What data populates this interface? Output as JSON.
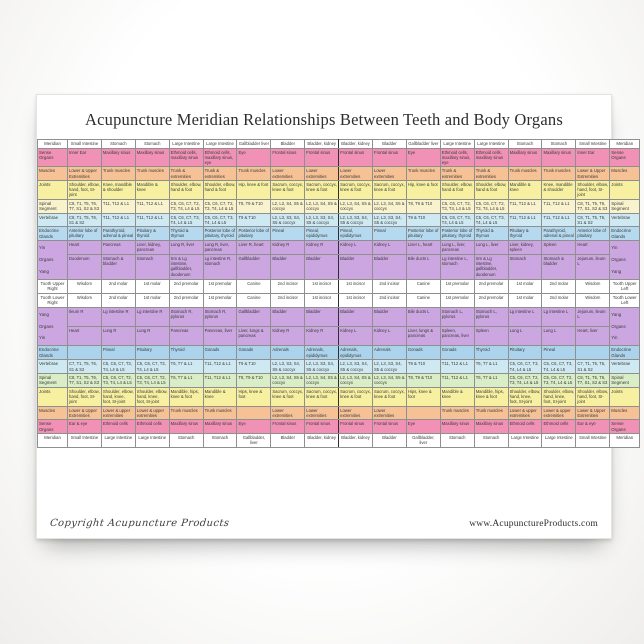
{
  "page": {
    "title": "Acupuncture Meridian Relationships Between Teeth and Body Organs",
    "footer_left": "Copyright Acupuncture Products",
    "footer_right": "www.AcupunctureProducts.com"
  },
  "colors": {
    "pink": "#f191b5",
    "peach": "#f6c295",
    "yellow": "#f6f0a0",
    "cream": "#f8f3cd",
    "cyan": "#cfe9f2",
    "blue": "#b5d9ee",
    "blue_lower": "#abd4ec",
    "purple": "#cba6e0",
    "green": "#d9edc6",
    "white": "#ffffff",
    "midline": "#2f2f2f"
  },
  "table": {
    "columns": 18,
    "rows": [
      {
        "name": "meridian-top",
        "bg": "#ffffff",
        "align": "center",
        "left": "Meridian",
        "right": "Meridian",
        "cells": [
          "Small Intestine",
          "Stomach",
          "Stomach",
          "Large Intestine",
          "Large Intestine",
          "Gallbladder liver",
          "Bladder",
          "Bladder, kidney",
          "Bladder, kidney",
          "Bladder",
          "Gallbladder liver",
          "Large Intestine",
          "Large Intestine",
          "Stomach",
          "Stomach",
          "Small Intestine"
        ]
      },
      {
        "name": "sense-organs-upper",
        "bg": "#f191b5",
        "left": "Sense Organs",
        "right": "Sense Organs",
        "cells": [
          "Inner Ear",
          "Maxillary sinus",
          "Maxillary sinus",
          "Ethmoid cells, maxillary sinus",
          "Ethmoid cells, maxillary sinus, eye",
          "Eye",
          "Frontal sinus",
          "Frontal sinus",
          "Frontal sinus",
          "Frontal sinus",
          "Eye",
          "Ethmoid cells, maxillary sinus, eye",
          "Ethmoid cells, maxillary sinus",
          "Maxillary sinus",
          "Maxillary sinus",
          "Inner Ear"
        ]
      },
      {
        "name": "muscles-upper",
        "bg": "#f6c295",
        "left": "Muscles",
        "right": "Muscles",
        "cells": [
          "Lower & Upper Extremities",
          "Trunk muscles",
          "Trunk muscles",
          "Trunk & extremities",
          "Trunk & extremities",
          "Trunk muscles",
          "Lower extremities",
          "Lower extremities",
          "Lower extremities",
          "Lower extremities",
          "Trunk muscles",
          "Trunk & extremities",
          "Trunk & extremities",
          "Trunk muscles",
          "Trunk muscles",
          "Lower & Upper Extremities"
        ]
      },
      {
        "name": "joints-upper",
        "bg": "#f6f0a0",
        "left": "Joints",
        "right": "Joints",
        "cells": [
          "Shoulder, elbow, hand, foot, SI-joint",
          "Knee, mandible & shoulder",
          "Mandible & knee",
          "Shoulder, elbow, hand & foot",
          "Shoulder, elbow, hand & foot",
          "Hip, knee & foot",
          "Sacrum, coccyx, knee & foot",
          "Sacrum, coccyx, knee & foot",
          "Sacrum, coccyx, knee & foot",
          "Sacrum, coccyx, knee & foot",
          "Hip, knee & foot",
          "Shoulder, elbow, hand & foot",
          "Shoulder, elbow, hand & foot",
          "Mandible & knee",
          "Knee, mandible & shoulder",
          "Shoulder, elbow, hand, foot, SI-joint"
        ]
      },
      {
        "name": "spinal-segment-upper",
        "bg": "#f8f3cd",
        "left": "Spinal Segment",
        "right": "Spinal Segment",
        "cells": [
          "C8, T1, T5, T6, T7, S1, S2 & S3",
          "T11, T12 & L1",
          "T11, T12 & L1",
          "C5, C6, C7, T2, T3, T4, L4 & L5",
          "C5, C6, C7, T2, T3, T4, L4 & L5",
          "T8, T9 & T10",
          "L2, L3, S4, S5 & coccyx",
          "L2, L3, S4, S5 & coccyx",
          "L2, L3, S4, S5 & coccyx",
          "L2, L3, S4, S5 & coccyx",
          "T8, T9 & T10",
          "C5, C6, C7, T2, T3, T4, L4 & L5",
          "C5, C6, C7, T2, T3, T4, L4 & L5",
          "T11, T12 & L1",
          "T11, T12 & L1",
          "C8, T1, T5, T6, T7, S1, S2 & S3"
        ]
      },
      {
        "name": "vertebrae-upper",
        "bg": "#cfe9f2",
        "left": "Vertebrae",
        "right": "Vertebrae",
        "cells": [
          "C8, T1, T5, T6, S1 & S2",
          "T11, T12 & L1",
          "T11, T12 & L1",
          "C5, C6, C7, T3, T4, L4 & L5",
          "C5, C6, C7, T3, T4, L4 & L5",
          "T9 & T10",
          "L2, L3, S3, S4, S5 & coccyx",
          "L2, L3, S3, S4, S5 & coccyx",
          "L2, L3, S3, S4, S5 & coccyx",
          "L2, L3, S3, S4, S5 & coccyx",
          "T9 & T10",
          "C5, C6, C7, T3, T4, L4 & L5",
          "C5, C6, C7, T3, T4, L4 & L5",
          "T11, T12 & L1",
          "T11, T12 & L1",
          "C8, T1, T5, T6, S1 & S2"
        ]
      },
      {
        "name": "endocrine-glands-upper",
        "bg": "#b5d9ee",
        "left": "Endocrine Glands",
        "right": "Endocrine Glands",
        "cells": [
          "Anterior lobe of pituitary",
          "Parathyroid, adrenal & pineal",
          "Pituitary & thyroid",
          "Thyroid & thymus",
          "Posterior lobe of pituitary, thyroid",
          "Posterior lobe of pituitary",
          "Pineal",
          "Pineal, epididymus",
          "Pineal, epididymus",
          "Pineal",
          "Posterior lobe of pituitary",
          "Posterior lobe of pituitary, thyroid",
          "Thyroid & thymus",
          "Pituitary & thyroid",
          "Parathyroid, adrenal & pineal",
          "Anterior lobe of pituitary"
        ]
      },
      {
        "name": "yin-organs-upper",
        "bg": "#cba6e0",
        "left": "Yin\nOrgans\nYang",
        "right": "Yin\nOrgans\nYang",
        "span": 2,
        "cells": [
          "Heart",
          "Pancreas",
          "Liver, kidney, pancreas",
          "Lung R, liver",
          "Lung R, liver, pancreas",
          "Liver R, heart",
          "Kidney R",
          "Kidney R",
          "Kidney L",
          "Kidney L",
          "Liver L, heart",
          "Lung L, liver, pancreas",
          "Lung L, liver",
          "Liver, kidney, spleen",
          "Spleen",
          "Heart"
        ]
      },
      {
        "name": "yang-organs-upper",
        "bg": "#cba6e0",
        "left": null,
        "right": null,
        "cells": [
          "Duodenum",
          "Stomach & bladder",
          "Stomach",
          "Sm & Lg intestine, gallbladder, duodenum",
          "Lg intestine R, stomach",
          "Gallbladder",
          "Bladder",
          "Bladder",
          "Bladder",
          "Bladder",
          "Bile ducts L",
          "Lg intestine L, stomach",
          "Sm & Lg intestine, gallbladder, duodenum",
          "Stomach",
          "Stomach & bladder",
          "Jejunum, ileum L"
        ]
      },
      {
        "name": "tooth-upper",
        "bg": "#ffffff",
        "align": "center",
        "left": "Tooth Upper Right",
        "right": "Tooth Upper Left",
        "cells": [
          "Wisdom",
          "2nd molar",
          "1st molar",
          "2nd premolar",
          "1st premolar",
          "Canine",
          "2nd incisor",
          "1st incisor",
          "1st incisor",
          "2nd incisor",
          "Canine",
          "1st premolar",
          "2nd premolar",
          "1st molar",
          "2nd molar",
          "Wisdom"
        ]
      },
      {
        "name": "tooth-lower",
        "bg": "#ffffff",
        "align": "center",
        "left": "Tooth Lower Right",
        "right": "Tooth Lower Left",
        "cells": [
          "Wisdom",
          "2nd molar",
          "1st molar",
          "2nd premolar",
          "1st premolar",
          "Canine",
          "2nd incisor",
          "1st incisor",
          "1st incisor",
          "2nd incisor",
          "Canine",
          "1st premolar",
          "2nd premolar",
          "1st molar",
          "2nd molar",
          "Wisdom"
        ]
      },
      {
        "name": "yang-organs-lower",
        "bg": "#cba6e0",
        "left": "Yang\nOrgans\nYin",
        "right": "Yang\nOrgans\nYin",
        "span": 2,
        "cells": [
          "Ileum R",
          "Lg intestine R",
          "Lg intestine R",
          "Stomach R, pylorus",
          "Stomach R, pylorus",
          "Gallbladder",
          "Bladder",
          "Bladder",
          "Bladder",
          "Bladder",
          "Bile ducts L",
          "Stomach L, pylorus",
          "Stomach L, pylorus",
          "Lg intestine L",
          "Lg intestine L",
          "Jejunum, ileum L"
        ]
      },
      {
        "name": "yin-organs-lower",
        "bg": "#cba6e0",
        "left": null,
        "right": null,
        "cells": [
          "Heart",
          "Lung R",
          "Lung R",
          "Pancreas",
          "Pancreas, liver",
          "Liver, lungs & pancreas",
          "Kidney R",
          "Kidney R",
          "Kidney L",
          "Kidney L",
          "Liver, lungs & pancreas",
          "Spleen, pancreas, liver",
          "Spleen",
          "Lung L",
          "Lung L",
          "Heart, liver"
        ]
      },
      {
        "name": "endocrine-glands-lower",
        "bg": "#abd4ec",
        "left": "Endocrine Glands",
        "right": "Endocrine Glands",
        "cells": [
          "",
          "Pineal",
          "Pituitary",
          "Thyroid",
          "Gonads",
          "Gonads",
          "Adrenals",
          "Adrenals, epididymus",
          "Adrenals, epididymus",
          "Adrenals",
          "Gonads",
          "Gonads",
          "Thyroid",
          "Pituitary",
          "Pineal",
          ""
        ]
      },
      {
        "name": "vertebrae-lower",
        "bg": "#cfe9f2",
        "left": "Vertebrae",
        "right": "Vertebrae",
        "cells": [
          "C7, T1, T5, T6, S1 & S2",
          "C5, C6, C7, T3, T4, L4 & L5",
          "C5, C6, C7, T3, T4, L4 & L5",
          "T6, T7 & L1",
          "T11, T12 & L1",
          "T9 & T10",
          "L2, L3, S3, S4, S5 & coccyx",
          "L2, L3, S3, S4, S5 & coccyx",
          "L2, L3, S3, S4, S5 & coccyx",
          "L2, L3, S3, S4, S5 & coccyx",
          "T9 & T10",
          "T11, T12 & L1",
          "T6, T7 & L1",
          "C5, C6, C7, T3, T4, L4 & L5",
          "C5, C6, C7, T3, T4, L4 & L5",
          "C7, T1, T5, T6, S1 & S2"
        ]
      },
      {
        "name": "spinal-segment-lower",
        "bg": "#d9edc6",
        "left": "Spinal Segment",
        "right": "Spinal Segment",
        "cells": [
          "C8, T1, T5, T6, T7, S1, S2 & S3",
          "C5, C6, C7, T2, T3, T4, L4 & L5",
          "C5, C6, C7, T2, T3, T4, L4 & L5",
          "T6, T7 & L1",
          "T11, T12 & L1",
          "T8, T9 & T10",
          "L2, L3, S4, S5 & coccyx",
          "L2, L3, S4, S5 & coccyx",
          "L2, L3, S4, S5 & coccyx",
          "L2, L3, S4, S5 & coccyx",
          "T8, T9 & T10",
          "T11, T12 & L1",
          "T6, T7 & L1",
          "C5, C6, C7, T2, T3, T4, L4 & L5",
          "C5, C6, C7, T2, T3, T4, L4 & L5",
          "C8, T1, T5, T6, T7, S1, S2 & S3"
        ]
      },
      {
        "name": "joints-lower",
        "bg": "#f6f0a0",
        "left": "Joints",
        "right": "Joints",
        "cells": [
          "Shoulder, elbow, hand, foot, SI-joint",
          "Shoulder, elbow, hand, knee, foot, SI-joint",
          "Shoulder, elbow, hand, knee, foot, SI-joint",
          "Mandible, hips, knee & foot",
          "Mandible & knee",
          "Hips, knee & foot",
          "Sacrum, coccyx, knee & foot",
          "Sacrum, coccyx, knee & foot",
          "Sacrum, coccyx, knee & foot",
          "Sacrum, coccyx, knee & foot",
          "Hips, knee & foot",
          "Mandible & knee",
          "Mandible, hips, knee & foot",
          "Shoulder, elbow, hand, knee, foot, SI-joint",
          "Shoulder, elbow, hand, knee, foot, SI-joint",
          "Shoulder, elbow, hand, foot, SI-joint"
        ]
      },
      {
        "name": "muscles-lower",
        "bg": "#f6c295",
        "left": "Muscles",
        "right": "Muscles",
        "cells": [
          "Lower & Upper Extremities",
          "Lower & upper extremities",
          "Lower & upper extremities",
          "Trunk muscles",
          "Trunk muscles",
          "",
          "Lower extremities",
          "Lower extremities",
          "Lower extremities",
          "Lower extremities",
          "",
          "Trunk muscles",
          "Trunk muscles",
          "Lower & upper extremities",
          "Lower & upper extremities",
          "Lower & Upper Extremities"
        ]
      },
      {
        "name": "sense-organs-lower",
        "bg": "#f191b5",
        "left": "Sense Organs",
        "right": "Sense Organs",
        "cells": [
          "Ear & eye",
          "Ethmoid cells",
          "Ethmoid cells",
          "Maxillary sinus",
          "Maxillary sinus",
          "Eye",
          "Frontal sinus",
          "Frontal sinus",
          "Frontal sinus",
          "Frontal sinus",
          "Eye",
          "Maxillary sinus",
          "Maxillary sinus",
          "Ethmoid cells",
          "Ethmoid cells",
          "Ear & eye"
        ]
      },
      {
        "name": "meridian-bottom",
        "bg": "#ffffff",
        "align": "center",
        "left": "Meridian",
        "right": "Meridian",
        "cells": [
          "Small Intestine",
          "Large Intestine",
          "Large Intestine",
          "Stomach",
          "Stomach",
          "Gallbladder, liver",
          "Bladder",
          "Bladder, kidney",
          "Bladder, kidney",
          "Bladder",
          "Gallbladder, liver",
          "Stomach",
          "Stomach",
          "Large Intestine",
          "Large Intestine",
          "Small Intestine"
        ]
      }
    ]
  }
}
